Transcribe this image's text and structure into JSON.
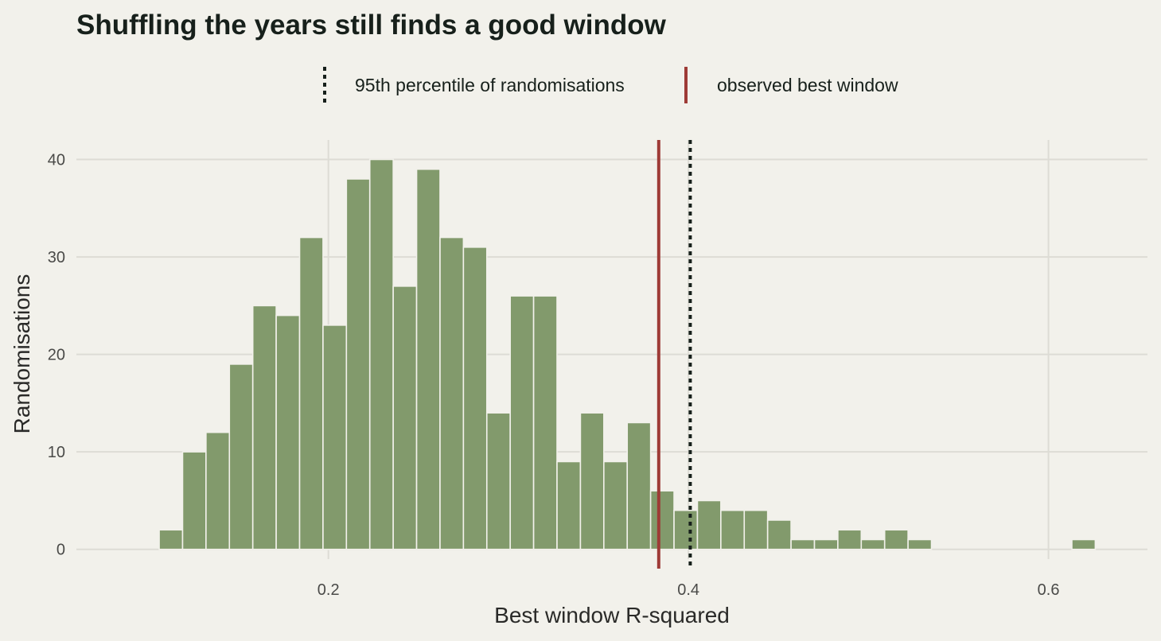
{
  "chart_data": {
    "type": "bar",
    "subtype": "histogram",
    "title": "Shuffling the years still finds a good window",
    "xlabel": "Best window R-squared",
    "ylabel": "Randomisations",
    "xlim": [
      0.06,
      0.655
    ],
    "ylim": [
      -1,
      42
    ],
    "x_ticks": [
      0.2,
      0.4,
      0.6
    ],
    "x_tick_labels": [
      "0.2",
      "0.4",
      "0.6"
    ],
    "y_ticks": [
      0,
      10,
      20,
      30,
      40
    ],
    "y_tick_labels": [
      "0",
      "10",
      "20",
      "30",
      "40"
    ],
    "grid": true,
    "bin_width": 0.013,
    "bin_centers": [
      0.1125,
      0.1255,
      0.1385,
      0.1515,
      0.1645,
      0.1775,
      0.1905,
      0.2035,
      0.2165,
      0.2295,
      0.2425,
      0.2555,
      0.2685,
      0.2815,
      0.2945,
      0.3075,
      0.3205,
      0.3335,
      0.3465,
      0.3595,
      0.3725,
      0.3855,
      0.3985,
      0.4115,
      0.4245,
      0.4375,
      0.4505,
      0.4635,
      0.4765,
      0.4895,
      0.5025,
      0.5155,
      0.5285,
      0.5415,
      0.5545,
      0.5675,
      0.5805,
      0.5935,
      0.6065,
      0.6195
    ],
    "counts": [
      2,
      10,
      12,
      19,
      25,
      24,
      32,
      23,
      38,
      40,
      27,
      39,
      32,
      31,
      14,
      26,
      26,
      9,
      14,
      9,
      13,
      6,
      4,
      5,
      4,
      4,
      3,
      1,
      1,
      2,
      1,
      2,
      1,
      0,
      0,
      0,
      0,
      0,
      0,
      1
    ],
    "reference_lines": [
      {
        "name": "95th percentile of randomisations",
        "x": 0.401,
        "style": "dotted",
        "color": "#17201b"
      },
      {
        "name": "observed best window",
        "x": 0.3835,
        "style": "solid",
        "color": "#9e3b36"
      }
    ],
    "legend_position": "top",
    "bar_color": "#829a6c",
    "background_color": "#f2f1eb"
  }
}
